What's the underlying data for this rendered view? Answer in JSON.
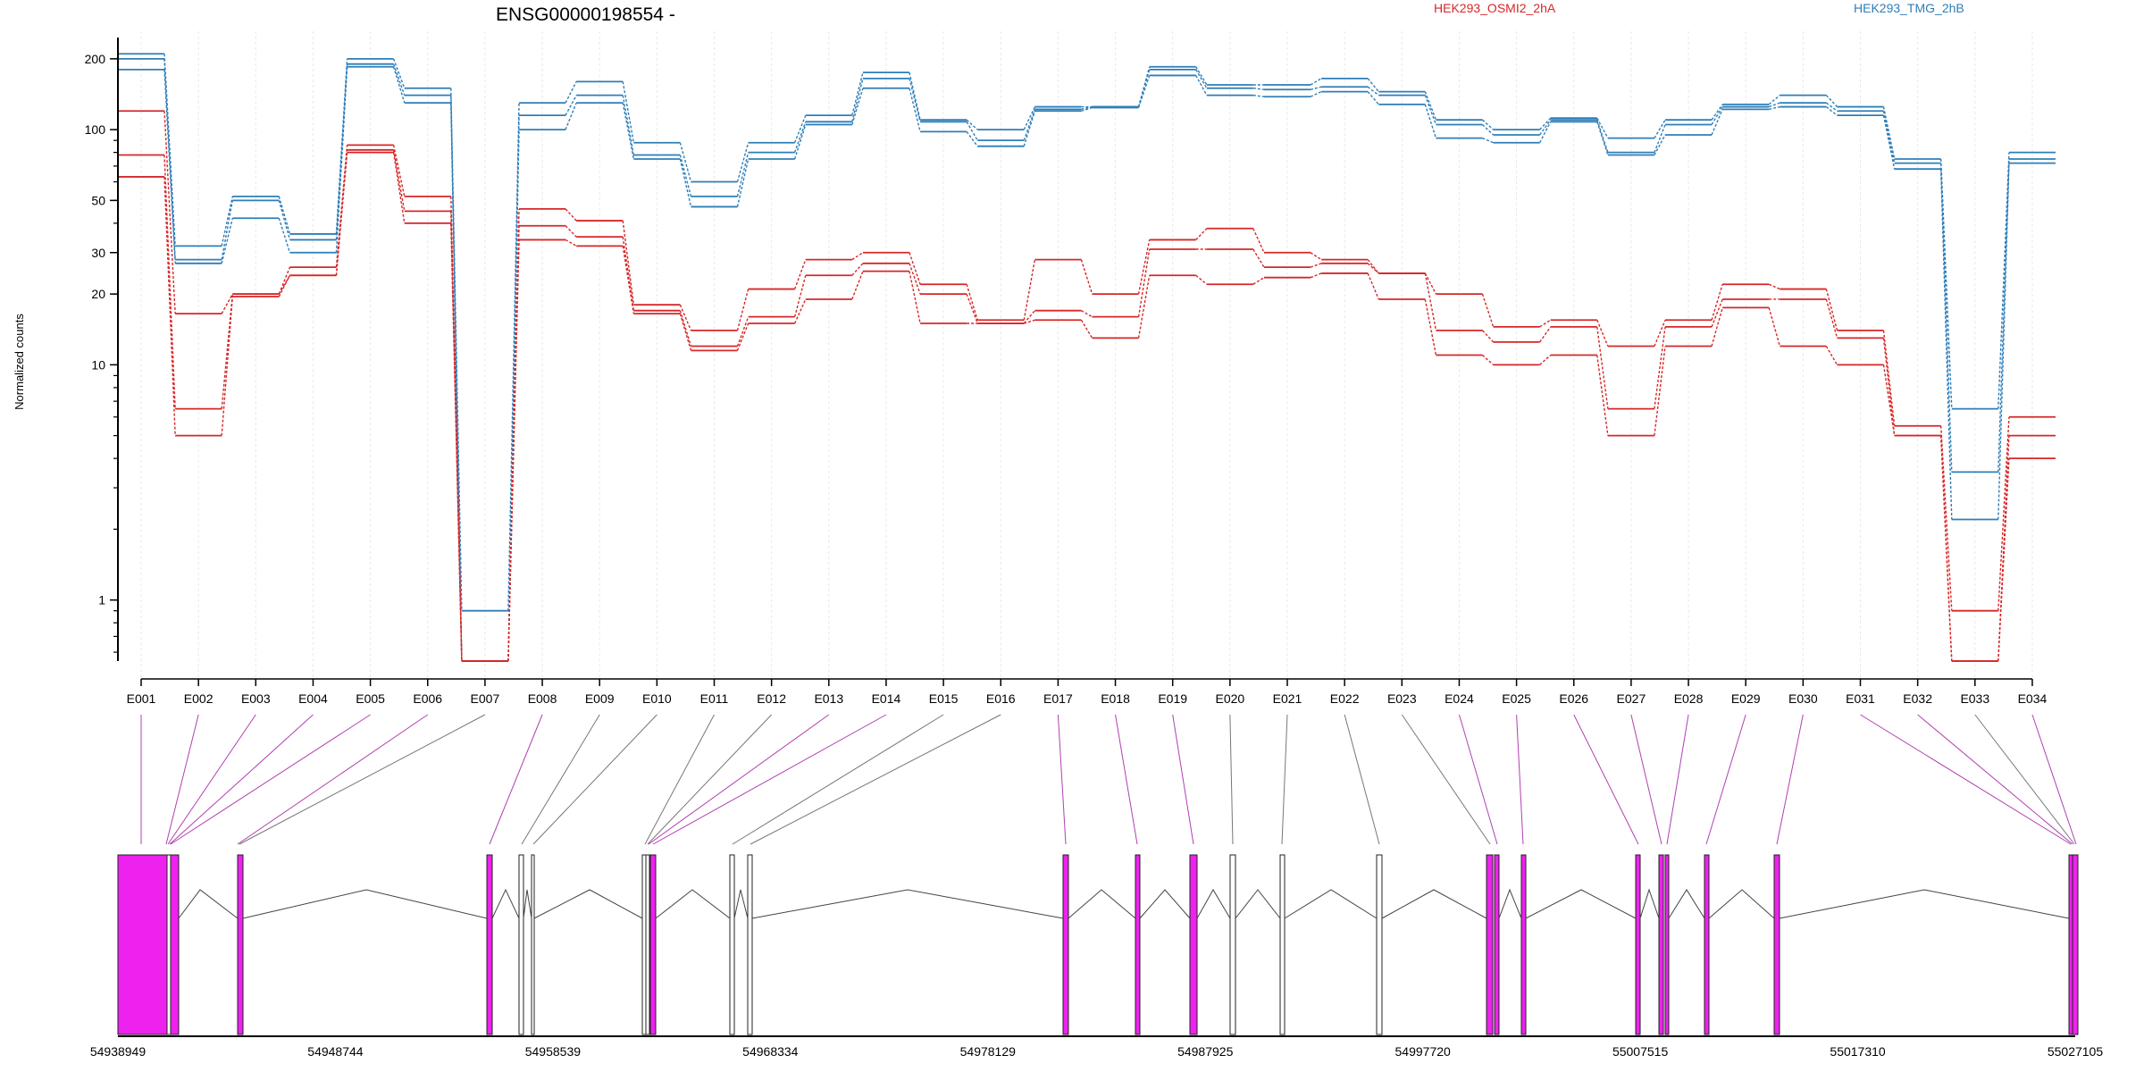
{
  "chart_data": {
    "type": "line",
    "title": "ENSG00000198554 -",
    "ylabel": "Normalized counts",
    "yscale": "log",
    "ylim": [
      0.55,
      240
    ],
    "y_ticks": [
      1,
      10,
      20,
      30,
      50,
      100,
      200
    ],
    "exons": [
      "E001",
      "E002",
      "E003",
      "E004",
      "E005",
      "E006",
      "E007",
      "E008",
      "E009",
      "E010",
      "E011",
      "E012",
      "E013",
      "E014",
      "E015",
      "E016",
      "E017",
      "E018",
      "E019",
      "E020",
      "E021",
      "E022",
      "E023",
      "E024",
      "E025",
      "E026",
      "E027",
      "E028",
      "E029",
      "E030",
      "E031",
      "E032",
      "E033",
      "E034"
    ],
    "legend": [
      {
        "name": "HEK293_OSMI2_2hA",
        "color": "#d62728"
      },
      {
        "name": "HEK293_TMG_2hB",
        "color": "#2e7eb8"
      }
    ],
    "series": [
      {
        "group": "HEK293_TMG_2hB",
        "color": "#2e7eb8",
        "values": [
          210,
          32,
          52,
          36,
          200,
          150,
          0.9,
          130,
          160,
          88,
          60,
          88,
          115,
          175,
          110,
          100,
          125,
          125,
          185,
          155,
          155,
          165,
          145,
          110,
          100,
          112,
          92,
          110,
          128,
          140,
          125,
          75,
          6.5,
          80
        ]
      },
      {
        "group": "HEK293_TMG_2hB",
        "color": "#2e7eb8",
        "values": [
          200,
          28,
          50,
          34,
          190,
          140,
          0.55,
          115,
          140,
          78,
          52,
          80,
          108,
          165,
          108,
          90,
          122,
          125,
          180,
          150,
          148,
          152,
          140,
          105,
          95,
          110,
          80,
          105,
          125,
          130,
          120,
          72,
          3.5,
          75
        ]
      },
      {
        "group": "HEK293_TMG_2hB",
        "color": "#2e7eb8",
        "values": [
          180,
          27,
          42,
          30,
          185,
          130,
          0.55,
          100,
          130,
          75,
          47,
          75,
          105,
          150,
          98,
          85,
          120,
          124,
          170,
          140,
          138,
          145,
          128,
          92,
          88,
          108,
          78,
          95,
          122,
          125,
          115,
          68,
          2.2,
          72
        ]
      },
      {
        "group": "HEK293_OSMI2_2hA",
        "color": "#d62728",
        "values": [
          120,
          16.5,
          20,
          26,
          86,
          52,
          0.55,
          46,
          41,
          18,
          14,
          21,
          28,
          30,
          22,
          15.5,
          28,
          20,
          34,
          38,
          30,
          28,
          24.5,
          20,
          14.5,
          15.5,
          12,
          15.5,
          22,
          21,
          14,
          5.5,
          0.9,
          6
        ]
      },
      {
        "group": "HEK293_OSMI2_2hA",
        "color": "#d62728",
        "values": [
          78,
          6.5,
          20,
          24,
          82,
          45,
          0.55,
          39,
          35,
          17,
          12,
          16,
          24,
          27,
          20,
          15,
          17,
          16,
          31,
          31,
          26,
          27,
          24.5,
          14,
          12.5,
          14.5,
          6.5,
          14.5,
          19,
          19,
          13,
          5,
          0.55,
          5
        ]
      },
      {
        "group": "HEK293_OSMI2_2hA",
        "color": "#d62728",
        "values": [
          63,
          5,
          19.5,
          24,
          80,
          40,
          0.55,
          34,
          32,
          16.5,
          11.5,
          15,
          19,
          25,
          15,
          15,
          15.5,
          13,
          24,
          22,
          23.5,
          24.5,
          19,
          11,
          10,
          11,
          5,
          12,
          17.5,
          12,
          10,
          5,
          0.55,
          4
        ]
      }
    ],
    "genomic_axis": {
      "ticks": [
        "54938949",
        "54948744",
        "54958539",
        "54968334",
        "54978129",
        "54987925",
        "54997720",
        "55007515",
        "55017310",
        "55027105"
      ]
    },
    "exon_type_colors": {
      "used": "#ee22ee",
      "other": "#ffffff"
    }
  }
}
